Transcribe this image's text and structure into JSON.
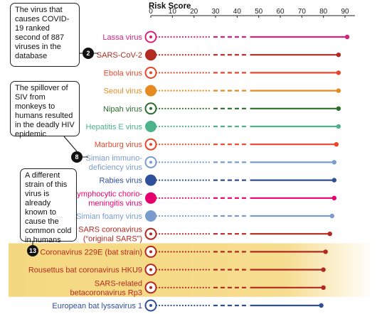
{
  "chart_data": {
    "type": "dot-line",
    "title": "Risk Score",
    "x_ticks": [
      0,
      10,
      20,
      30,
      40,
      50,
      60,
      70,
      80,
      90
    ],
    "xlim": [
      0,
      92
    ],
    "highlight_color": "#f4d67a",
    "rows": [
      {
        "label": "Lassa virus",
        "value": 91,
        "color": "#d6247e",
        "marker": "ring"
      },
      {
        "label": "SARS-CoV-2",
        "value": 87,
        "color": "#b32a20",
        "marker": "fill"
      },
      {
        "label": "Ebola virus",
        "value": 87,
        "color": "#e8472b",
        "marker": "ring"
      },
      {
        "label": "Seoul virus",
        "value": 87,
        "color": "#e58a1f",
        "marker": "fill"
      },
      {
        "label": "Nipah virus",
        "value": 87,
        "color": "#2c6e2f",
        "marker": "ring"
      },
      {
        "label": "Hepatitis E virus",
        "value": 87,
        "color": "#4db38a",
        "marker": "fill"
      },
      {
        "label": "Marburg virus",
        "value": 86,
        "color": "#e8472b",
        "marker": "ring"
      },
      {
        "label": "Simian immuno-\ndeficiency virus",
        "value": 85,
        "color": "#7a9ccc",
        "marker": "ring"
      },
      {
        "label": "Rabies virus",
        "value": 85,
        "color": "#2e4f9a",
        "marker": "fill"
      },
      {
        "label": "Lymphocytic chorio-\nmeningitis virus",
        "value": 85,
        "color": "#e6006e",
        "marker": "fill"
      },
      {
        "label": "Simian foamy virus",
        "value": 84,
        "color": "#7a9ccc",
        "marker": "fill"
      },
      {
        "label": "SARS coronavirus\n(“original SARS”)",
        "value": 83,
        "color": "#b32a20",
        "marker": "ring"
      },
      {
        "label": "Coronavirus 229E (bat strain)",
        "value": 81,
        "color": "#b32a20",
        "marker": "ring",
        "highlight": true
      },
      {
        "label": "Rousettus bat coronavirus HKU9",
        "value": 80,
        "color": "#b32a20",
        "marker": "ring",
        "highlight": true
      },
      {
        "label": "SARS-related\nbetacoronavirus Rp3",
        "value": 80,
        "color": "#b32a20",
        "marker": "ring",
        "highlight": true
      },
      {
        "label": "European bat lyssavirus 1",
        "value": 79,
        "color": "#2e4f9a",
        "marker": "ring"
      }
    ]
  },
  "callouts": [
    {
      "number": "2",
      "text": "The virus that causes COVID-19 ranked second of 887 viruses in the database"
    },
    {
      "number": "8",
      "text": "The spillover of SIV from monkeys to humans resulted in the deadly HIV epidemic"
    },
    {
      "number": "13",
      "text": "A different strain of this virus is already known to cause the common cold in humans"
    }
  ]
}
